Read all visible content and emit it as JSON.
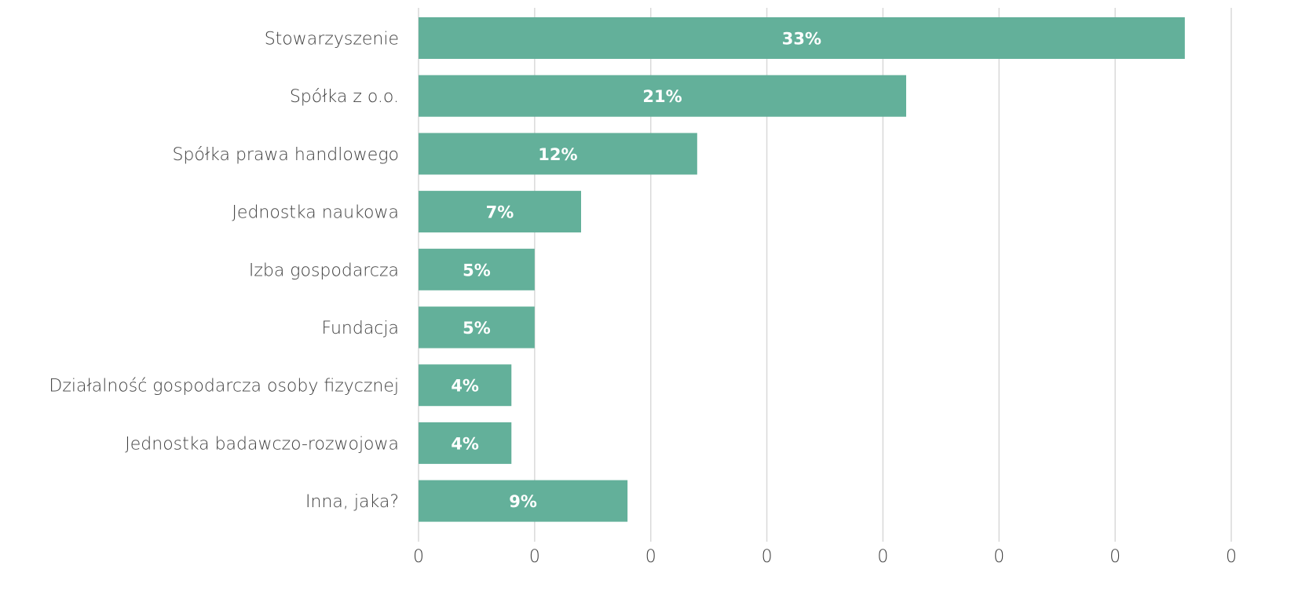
{
  "chart_data": {
    "type": "bar",
    "orientation": "horizontal",
    "categories": [
      "Stowarzyszenie",
      "Spółka z o.o.",
      "Spółka prawa handlowego",
      "Jednostka naukowa",
      "Izba gospodarcza",
      "Fundacja",
      "Działalność gospodarcza osoby fizycznej",
      "Jednostka badawczo-rozwojowa",
      "Inna, jaka?"
    ],
    "values": [
      0.33,
      0.21,
      0.12,
      0.07,
      0.05,
      0.05,
      0.04,
      0.04,
      0.09
    ],
    "data_labels": [
      "33%",
      "21%",
      "12%",
      "7%",
      "5%",
      "5%",
      "4%",
      "4%",
      "9%"
    ],
    "xlim": [
      0,
      0.35
    ],
    "x_ticks": [
      0,
      0.05,
      0.1,
      0.15,
      0.2,
      0.25,
      0.3,
      0.35
    ],
    "x_tick_labels": [
      "0",
      "0",
      "0",
      "0",
      "0",
      "0",
      "0",
      "0"
    ],
    "title": "",
    "xlabel": "",
    "ylabel": "",
    "grid": "vertical",
    "legend": "none",
    "bar_color": "#63b09a",
    "gridline_color": "#d9d9d9",
    "label_color": "#404040",
    "data_label_color": "#ffffff"
  }
}
